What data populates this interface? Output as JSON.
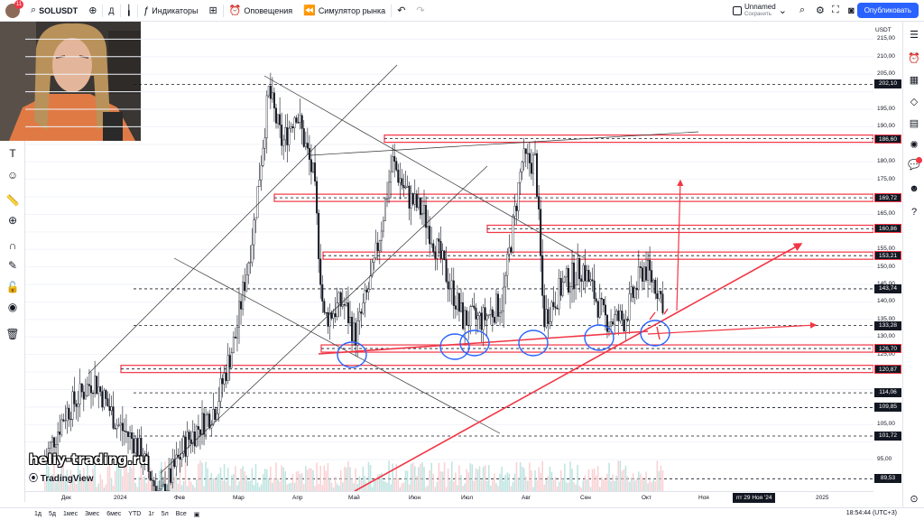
{
  "topbar": {
    "avatar_badge": "11",
    "symbol": "SOLUSDT",
    "interval": "Д",
    "indicators_label": "Индикаторы",
    "alerts_label": "Оповещения",
    "replay_label": "Симулятор рынка",
    "layout_name": "Unnamed",
    "layout_saved": "Сохранить",
    "publish_label": "Опубликовать"
  },
  "price_axis": {
    "currency": "USDT",
    "ticks": [
      "215,00",
      "210,00",
      "205,00",
      "195,00",
      "190,00",
      "180,00",
      "175,00",
      "165,00",
      "155,00",
      "150,00",
      "145,00",
      "140,00",
      "135,00",
      "130,00",
      "125,00",
      "105,00",
      "95,00"
    ],
    "labels": [
      "202,10",
      "186,60",
      "169,72",
      "160,86",
      "153,21",
      "143,74",
      "133,28",
      "126,70",
      "120,87",
      "114,06",
      "109,85",
      "101,72",
      "89,53"
    ],
    "red_labels": [
      "186,60",
      "169,72",
      "160,86",
      "153,21",
      "126,70",
      "120,87"
    ]
  },
  "time_axis": {
    "ticks": [
      "Дек",
      "2024",
      "Фев",
      "Мар",
      "Апр",
      "Май",
      "Июн",
      "Июл",
      "Авг",
      "Сен",
      "Окт",
      "Ноя",
      "2025"
    ],
    "cursor_label": "пт 29 Ноя '24"
  },
  "bottombar": {
    "ranges": [
      "1д",
      "5д",
      "1мес",
      "3мес",
      "6мес",
      "YTD",
      "1г",
      "5л",
      "Все"
    ],
    "clock": "18:54:44 (UTC+3)"
  },
  "watermark": {
    "site": "heliy-trading.ru",
    "brand": "TradingView"
  },
  "colors": {
    "accent": "#2962ff",
    "level_red": "#f23645",
    "candle": "#131722",
    "volume": "#26a69a"
  },
  "chart_data": {
    "type": "candlestick",
    "y_axis_label": "USDT",
    "ylim": [
      86,
      220
    ],
    "x_range": [
      "2023-11-15",
      "2025-01-20"
    ],
    "key_levels": [
      202.1,
      186.6,
      169.72,
      160.86,
      153.21,
      143.74,
      133.28,
      126.7,
      120.87,
      114.06,
      109.85,
      101.72,
      89.53
    ],
    "highlighted_levels": [
      186.6,
      169.72,
      160.86,
      153.21,
      126.7,
      120.87
    ],
    "close_path": [
      [
        "2023-11-25",
        95
      ],
      [
        "2023-12-05",
        108
      ],
      [
        "2023-12-20",
        118
      ],
      [
        "2024-01-01",
        105
      ],
      [
        "2024-01-10",
        100
      ],
      [
        "2024-01-23",
        84
      ],
      [
        "2024-02-05",
        100
      ],
      [
        "2024-02-20",
        110
      ],
      [
        "2024-03-01",
        130
      ],
      [
        "2024-03-10",
        160
      ],
      [
        "2024-03-18",
        200
      ],
      [
        "2024-03-25",
        185
      ],
      [
        "2024-04-01",
        195
      ],
      [
        "2024-04-10",
        175
      ],
      [
        "2024-04-15",
        135
      ],
      [
        "2024-04-25",
        140
      ],
      [
        "2024-05-01",
        130
      ],
      [
        "2024-05-10",
        148
      ],
      [
        "2024-05-20",
        180
      ],
      [
        "2024-05-28",
        170
      ],
      [
        "2024-06-05",
        165
      ],
      [
        "2024-06-15",
        150
      ],
      [
        "2024-06-25",
        135
      ],
      [
        "2024-07-05",
        135
      ],
      [
        "2024-07-15",
        140
      ],
      [
        "2024-07-25",
        180
      ],
      [
        "2024-08-01",
        180
      ],
      [
        "2024-08-05",
        135
      ],
      [
        "2024-08-15",
        145
      ],
      [
        "2024-08-25",
        150
      ],
      [
        "2024-09-05",
        135
      ],
      [
        "2024-09-15",
        135
      ],
      [
        "2024-09-25",
        150
      ],
      [
        "2024-10-01",
        145
      ],
      [
        "2024-10-05",
        140
      ]
    ]
  }
}
